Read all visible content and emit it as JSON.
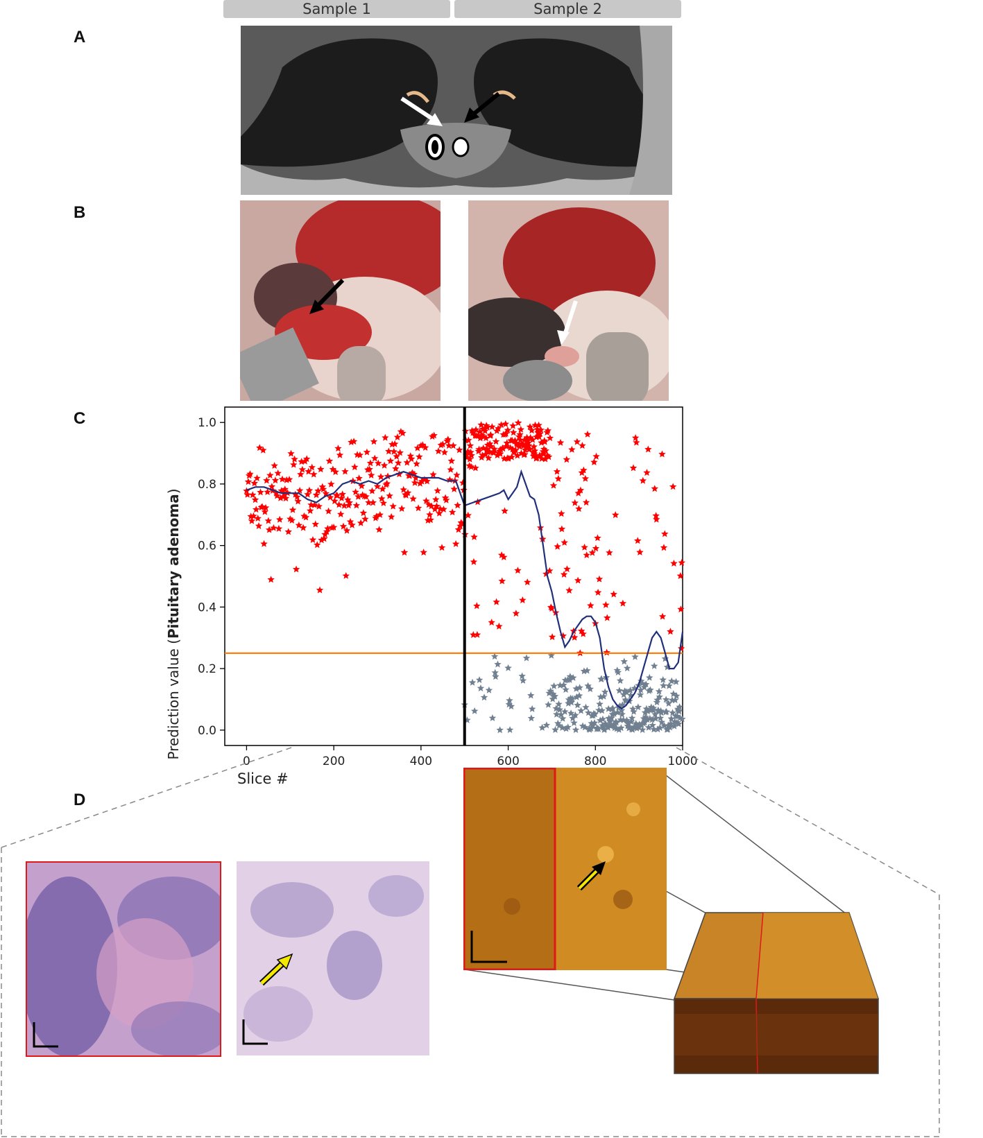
{
  "tabs": {
    "sample1": "Sample 1",
    "sample2": "Sample 2"
  },
  "panels": {
    "a": "A",
    "b": "B",
    "c": "C",
    "d": "D"
  },
  "colors": {
    "adenoma_points": "#ff0000",
    "normal_points": "#708090",
    "moving_average": "#1f2f7a",
    "threshold": "#ff7f0e",
    "divider": "#000000"
  },
  "chart_data": {
    "type": "scatter",
    "ylabel_prefix": "Prediction value (",
    "ylabel_bold": "Pituitary adenoma",
    "ylabel_suffix": ")",
    "xlabel": "Slice #",
    "xlim": [
      -50,
      1000
    ],
    "ylim": [
      -0.05,
      1.05
    ],
    "xticks": [
      0,
      200,
      400,
      600,
      800,
      1000
    ],
    "yticks": [
      0.0,
      0.2,
      0.4,
      0.6,
      0.8,
      1.0
    ],
    "threshold": 0.25,
    "divider_x": 500,
    "marker": "star",
    "moving_average": {
      "x": [
        0,
        20,
        40,
        60,
        80,
        100,
        120,
        140,
        160,
        180,
        200,
        220,
        240,
        260,
        280,
        300,
        320,
        340,
        360,
        380,
        400,
        420,
        440,
        460,
        480,
        500,
        520,
        540,
        560,
        580,
        590,
        600,
        610,
        620,
        630,
        640,
        650,
        660,
        670,
        680,
        690,
        700,
        710,
        720,
        730,
        740,
        750,
        760,
        770,
        780,
        790,
        800,
        810,
        820,
        830,
        840,
        850,
        860,
        870,
        880,
        890,
        900,
        910,
        920,
        930,
        940,
        950,
        960,
        970,
        980,
        990,
        1000
      ],
      "y": [
        0.78,
        0.79,
        0.79,
        0.78,
        0.77,
        0.77,
        0.77,
        0.75,
        0.74,
        0.76,
        0.77,
        0.8,
        0.81,
        0.8,
        0.81,
        0.8,
        0.82,
        0.83,
        0.84,
        0.83,
        0.82,
        0.82,
        0.82,
        0.81,
        0.81,
        0.73,
        0.74,
        0.75,
        0.76,
        0.77,
        0.78,
        0.75,
        0.77,
        0.79,
        0.84,
        0.8,
        0.76,
        0.75,
        0.7,
        0.6,
        0.5,
        0.45,
        0.38,
        0.32,
        0.27,
        0.29,
        0.32,
        0.34,
        0.36,
        0.37,
        0.37,
        0.35,
        0.3,
        0.2,
        0.14,
        0.1,
        0.08,
        0.07,
        0.08,
        0.1,
        0.12,
        0.15,
        0.2,
        0.25,
        0.3,
        0.32,
        0.3,
        0.25,
        0.2,
        0.2,
        0.22,
        0.32
      ]
    }
  }
}
